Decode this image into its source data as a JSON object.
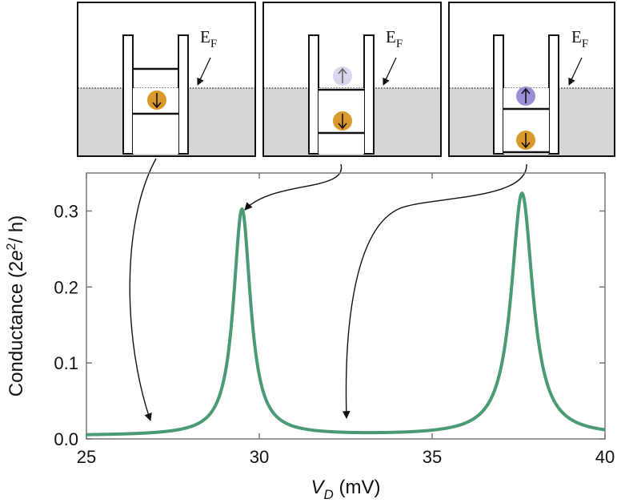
{
  "chart_data": {
    "type": "line",
    "xlabel": {
      "italic": "V",
      "sub": "D",
      "rest": " (mV)"
    },
    "ylabel": {
      "pre": "Conductance (2",
      "italic": "e",
      "sup": "2",
      "post": "/ h)"
    },
    "xlim": [
      25,
      40
    ],
    "ylim": [
      0,
      0.35
    ],
    "xticks": [
      25,
      30,
      35,
      40
    ],
    "yticks": [
      0.0,
      0.1,
      0.2,
      0.3
    ],
    "xtick_labels": [
      "25",
      "30",
      "35",
      "40"
    ],
    "ytick_labels": [
      "0.0",
      "0.1",
      "0.2",
      "0.3"
    ],
    "grid": false,
    "series": [
      {
        "color": "#4a9a74",
        "peaks": [
          {
            "center": 29.5,
            "height": 0.298,
            "width": 0.3
          },
          {
            "center": 37.6,
            "height": 0.319,
            "width": 0.38
          }
        ],
        "background": 0.004
      }
    ]
  },
  "insets": [
    {
      "id": "left",
      "level_label": "E",
      "level_sub": "F",
      "occupancy": "spin-down only"
    },
    {
      "id": "middle",
      "level_label": "E",
      "level_sub": "F",
      "occupancy": "spin-down occupied, spin-up level at Fermi energy"
    },
    {
      "id": "right",
      "level_label": "E",
      "level_sub": "F",
      "occupancy": "spin-down and spin-up occupied"
    }
  ],
  "colors": {
    "orange": "#d99a2b",
    "purple_strong": "#9b8fd6",
    "purple_faint": "#dcd5ef",
    "fill_gray": "#d6d6d6"
  }
}
